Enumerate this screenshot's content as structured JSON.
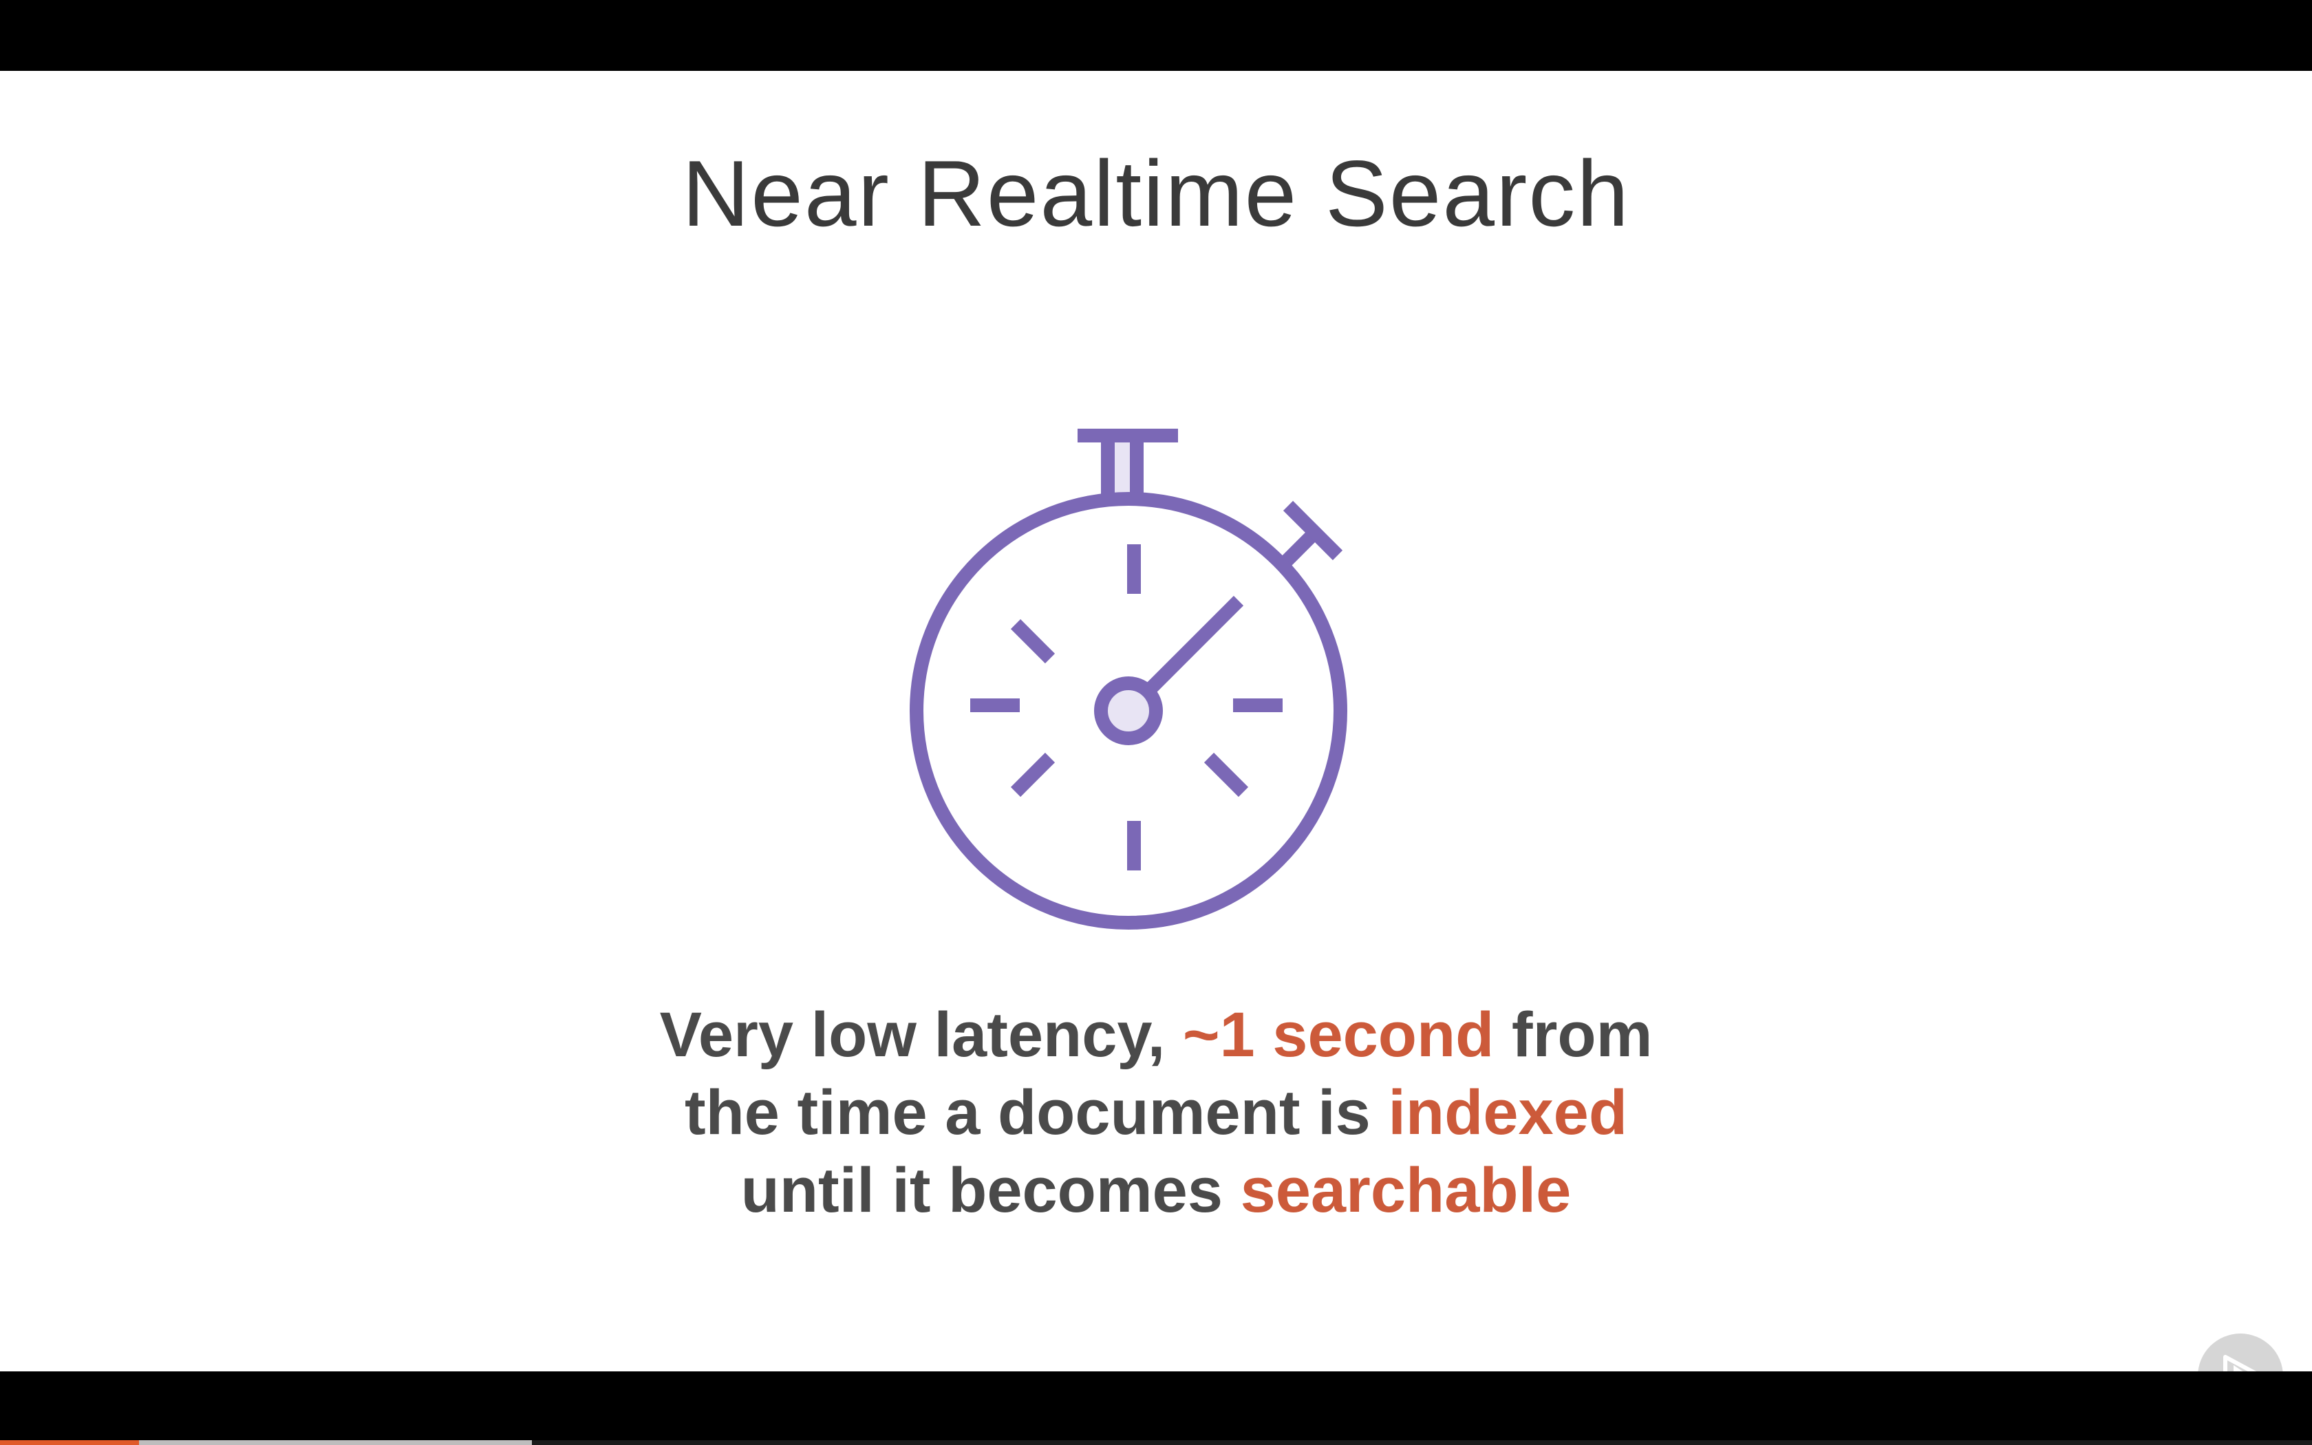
{
  "slide": {
    "title": "Near Realtime Search",
    "body": {
      "line1": {
        "a": "Very low latency, ",
        "b": "~1 second",
        "c": " from"
      },
      "line2": {
        "a": "the time a document is ",
        "b": "indexed"
      },
      "line3": {
        "a": "until it becomes ",
        "b": "searchable"
      }
    },
    "icon": "stopwatch-icon"
  },
  "player": {
    "play_icon": "play-logo-icon",
    "progress_played_fraction": 0.06,
    "progress_buffered_fraction": 0.23
  },
  "colors": {
    "accent": "#7b68b6",
    "accent_fill": "#e8e4f4",
    "highlight": "#cc5a3a",
    "text": "#4a4a4a",
    "progress": "#e05a2a"
  }
}
